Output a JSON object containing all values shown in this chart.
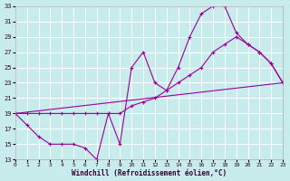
{
  "xlabel": "Windchill (Refroidissement éolien,°C)",
  "line_color": "#990099",
  "bg_color": "#c8ecec",
  "grid_color": "#ffffff",
  "xmin": 0,
  "xmax": 23,
  "ymin": 13,
  "ymax": 33,
  "yticks": [
    13,
    15,
    17,
    19,
    21,
    23,
    25,
    27,
    29,
    31,
    33
  ],
  "xticks": [
    0,
    1,
    2,
    3,
    4,
    5,
    6,
    7,
    8,
    9,
    10,
    11,
    12,
    13,
    14,
    15,
    16,
    17,
    18,
    19,
    20,
    21,
    22,
    23
  ],
  "curve1_x": [
    0,
    1,
    2,
    3,
    4,
    5,
    6,
    7,
    8,
    9,
    10,
    11,
    12,
    13,
    14,
    15,
    16,
    17,
    18,
    19,
    20,
    21,
    22,
    23
  ],
  "curve1_y": [
    19,
    17.5,
    16,
    15,
    15,
    15,
    14.5,
    13,
    19,
    15,
    25,
    27,
    23,
    22,
    25,
    29,
    32,
    33,
    33,
    29.5,
    28,
    27,
    25.5,
    23
  ],
  "curve2_x": [
    0,
    1,
    2,
    3,
    4,
    5,
    6,
    7,
    8,
    9,
    10,
    11,
    12,
    13,
    14,
    15,
    16,
    17,
    18,
    19,
    20,
    21,
    22,
    23
  ],
  "curve2_y": [
    19,
    19,
    19,
    19,
    19,
    19,
    19,
    19,
    19,
    19,
    20,
    20.5,
    21,
    22,
    23,
    24,
    25,
    27,
    28,
    29,
    28,
    27,
    25.5,
    23
  ],
  "curve3_x": [
    0,
    23
  ],
  "curve3_y": [
    19,
    23
  ]
}
